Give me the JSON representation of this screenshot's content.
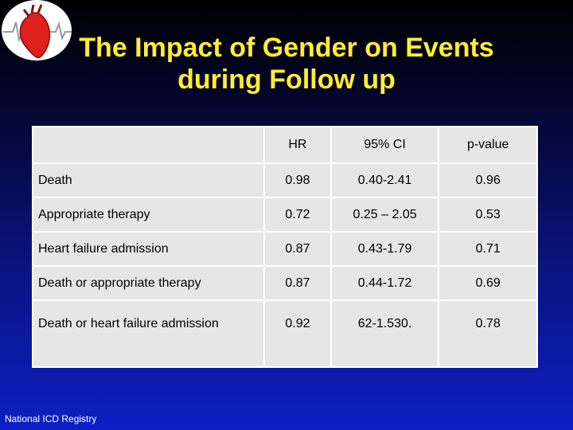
{
  "slide": {
    "title_line1": "The Impact of Gender on Events",
    "title_line2": "during Follow up",
    "footer": "National ICD Registry",
    "title_color": "#ffee33"
  },
  "table": {
    "headers": [
      "",
      "HR",
      "95% CI",
      "p-value"
    ],
    "rows": [
      {
        "label": "Death",
        "hr": "0.98",
        "ci": "0.40-2.41",
        "p": "0.96"
      },
      {
        "label": "Appropriate therapy",
        "hr": "0.72",
        "ci": "0.25 – 2.05",
        "p": "0.53"
      },
      {
        "label": "Heart failure admission",
        "hr": "0.87",
        "ci": "0.43-1.79",
        "p": "0.71"
      },
      {
        "label": "Death or appropriate therapy",
        "hr": "0.87",
        "ci": "0.44-1.72",
        "p": "0.69"
      },
      {
        "label": "Death or heart failure admission",
        "hr": "0.92",
        "ci": "62-1.530.",
        "p": "0.78"
      }
    ]
  }
}
